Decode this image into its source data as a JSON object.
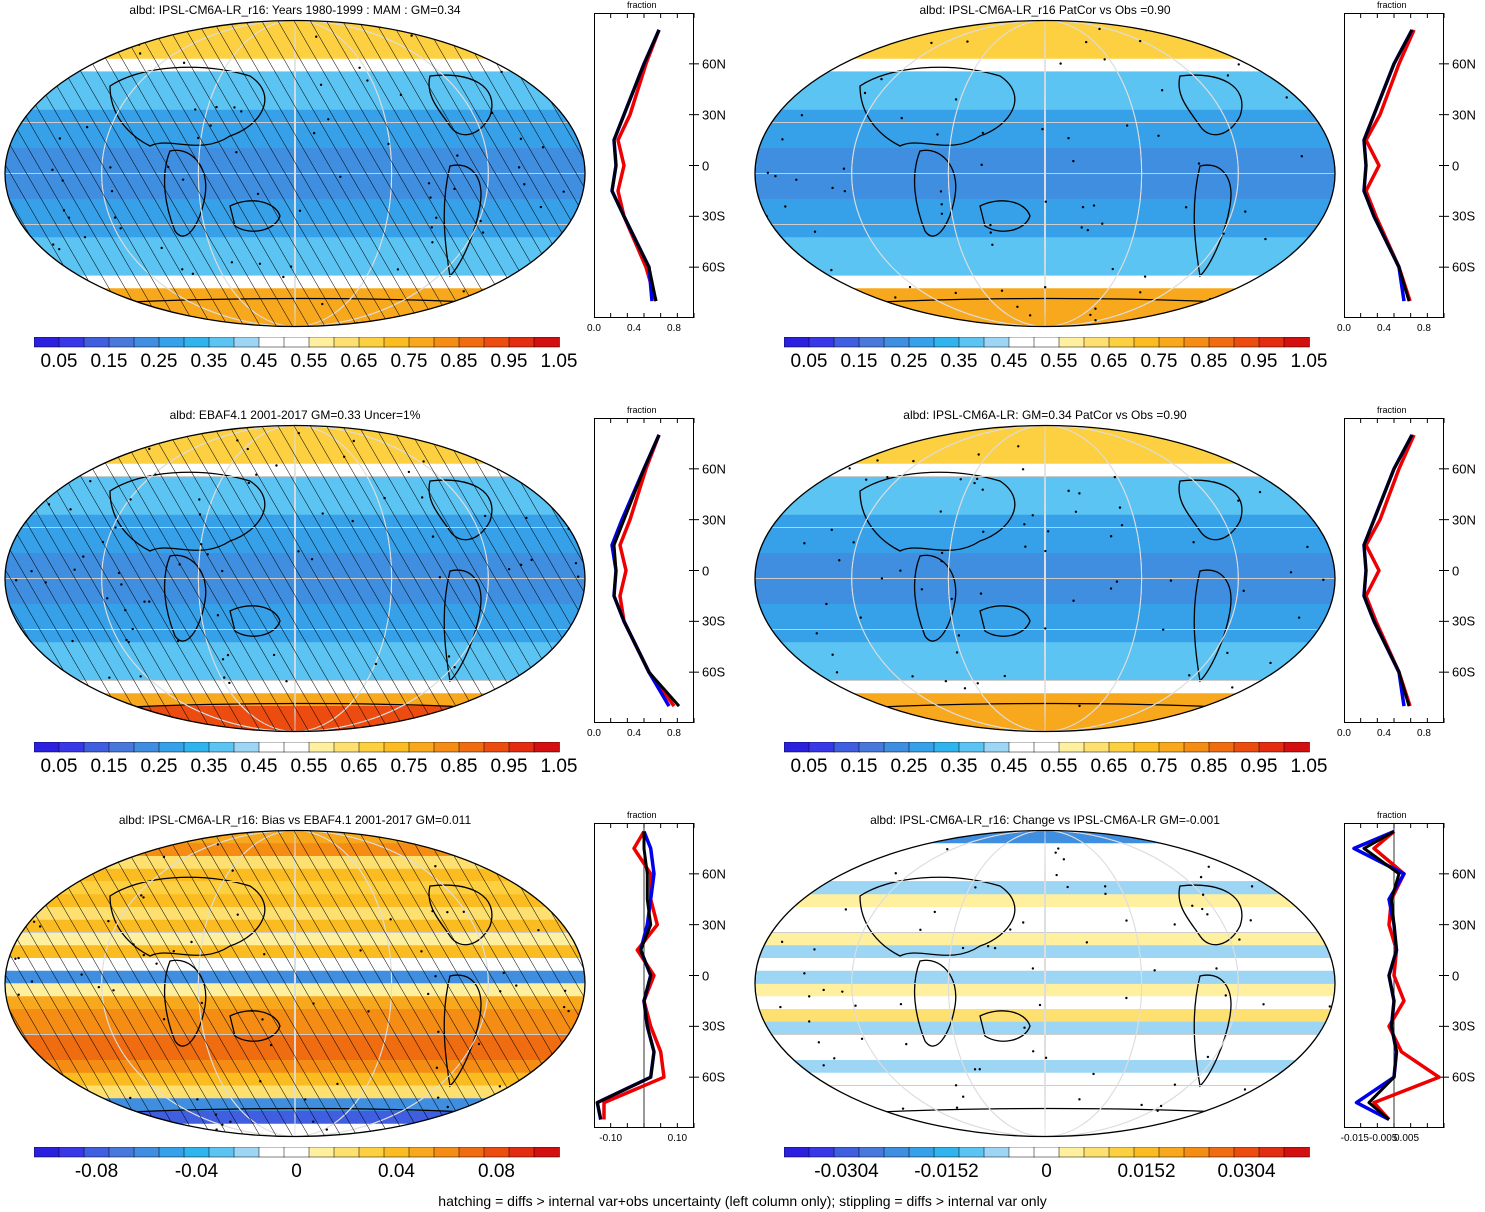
{
  "colorbars": {
    "albedo": {
      "colors": [
        "#2b1fe0",
        "#3838e8",
        "#3f5ee0",
        "#4878dc",
        "#3f8ee0",
        "#36a0e8",
        "#30b4ee",
        "#5cc4f2",
        "#9cd6f4",
        "#ffffff",
        "#ffffff",
        "#fff0a0",
        "#fde070",
        "#fcd040",
        "#fabc20",
        "#f8a81c",
        "#f58c14",
        "#f06c10",
        "#ec4c10",
        "#e42c10",
        "#d40f0f"
      ],
      "labels": [
        "0.05",
        "0.15",
        "0.25",
        "0.35",
        "0.45",
        "0.55",
        "0.65",
        "0.75",
        "0.85",
        "0.95",
        "1.05"
      ]
    },
    "bias": {
      "colors": [
        "#2b1fe0",
        "#3838e8",
        "#3f5ee0",
        "#4878dc",
        "#3f8ee0",
        "#36a0e8",
        "#30b4ee",
        "#5cc4f2",
        "#9cd6f4",
        "#ffffff",
        "#ffffff",
        "#fff0a0",
        "#fde070",
        "#fcd040",
        "#fabc20",
        "#f8a81c",
        "#f58c14",
        "#f06c10",
        "#ec4c10",
        "#e42c10",
        "#d40f0f"
      ],
      "labels": [
        "-0.08",
        "-0.04",
        "0",
        "0.04",
        "0.08"
      ]
    },
    "change": {
      "colors": [
        "#2b1fe0",
        "#3838e8",
        "#3f5ee0",
        "#4878dc",
        "#3f8ee0",
        "#36a0e8",
        "#30b4ee",
        "#5cc4f2",
        "#9cd6f4",
        "#ffffff",
        "#ffffff",
        "#fff0a0",
        "#fde070",
        "#fcd040",
        "#fabc20",
        "#f8a81c",
        "#f58c14",
        "#f06c10",
        "#ec4c10",
        "#e42c10",
        "#d40f0f"
      ],
      "labels": [
        "-0.0304",
        "-0.0152",
        "0",
        "0.0152",
        "0.0304"
      ]
    }
  },
  "lat_labels": [
    "60N",
    "30N",
    "0",
    "30S",
    "60S"
  ],
  "zonal_top_label": "fraction",
  "panels": [
    {
      "id": "p1",
      "title": "albd: IPSL-CM6A-LR_r16: Years 1980-1999 : MAM : GM=0.34",
      "bar": "albedo",
      "xticks": [
        "0.0",
        "0.4",
        "0.8"
      ],
      "hatched": true,
      "stippled": true
    },
    {
      "id": "p2",
      "title": "albd: IPSL-CM6A-LR_r16 PatCor vs Obs =0.90",
      "bar": "albedo",
      "xticks": [
        "0.0",
        "0.4",
        "0.8"
      ],
      "hatched": false,
      "stippled": true
    },
    {
      "id": "p3",
      "title": "albd: EBAF4.1 2001-2017 GM=0.33 Uncer=1%",
      "bar": "albedo",
      "xticks": [
        "0.0",
        "0.4",
        "0.8"
      ],
      "hatched": true,
      "stippled": true
    },
    {
      "id": "p4",
      "title": "albd: IPSL-CM6A-LR: GM=0.34 PatCor vs Obs =0.90",
      "bar": "albedo",
      "xticks": [
        "0.0",
        "0.4",
        "0.8"
      ],
      "hatched": false,
      "stippled": true
    },
    {
      "id": "p5",
      "title": "albd: IPSL-CM6A-LR_r16: Bias vs EBAF4.1 2001-2017 GM=0.011",
      "bar": "bias",
      "xticks": [
        "-0.10",
        "0.10"
      ],
      "hatched": true,
      "stippled": true
    },
    {
      "id": "p6",
      "title": "albd: IPSL-CM6A-LR_r16: Change vs IPSL-CM6A-LR GM=-0.001",
      "bar": "change",
      "xticks": [
        "-0.015-0.005",
        "0.005"
      ],
      "hatched": false,
      "stippled": true
    }
  ],
  "footer": "hatching = diffs > internal var+obs uncertainty (left column only); stippling = diffs > internal var only",
  "chart_data": [
    {
      "type": "line",
      "title": "albd: IPSL-CM6A-LR_r16: Years 1980-1999 : MAM : GM=0.34",
      "xlabel": "fraction",
      "xlim": [
        0,
        1
      ],
      "ylim": [
        -90,
        90
      ],
      "y": [
        -80,
        -60,
        -30,
        -15,
        0,
        15,
        30,
        60,
        80
      ],
      "series": [
        {
          "color": "#000000",
          "values": [
            0.62,
            0.55,
            0.3,
            0.18,
            0.22,
            0.2,
            0.3,
            0.5,
            0.65
          ]
        },
        {
          "color": "#ee0000",
          "values": [
            0.62,
            0.52,
            0.3,
            0.24,
            0.3,
            0.24,
            0.36,
            0.52,
            0.65
          ]
        },
        {
          "color": "#0000ee",
          "values": [
            0.58,
            0.55,
            0.3,
            0.18,
            0.22,
            0.2,
            0.3,
            0.5,
            0.65
          ]
        }
      ]
    },
    {
      "type": "line",
      "title": "albd: IPSL-CM6A-LR_r16 PatCor vs Obs =0.90",
      "xlabel": "fraction",
      "xlim": [
        0,
        1
      ],
      "ylim": [
        -90,
        90
      ],
      "y": [
        -80,
        -60,
        -30,
        -15,
        0,
        15,
        30,
        60,
        80
      ],
      "series": [
        {
          "color": "#000000",
          "values": [
            0.65,
            0.55,
            0.3,
            0.2,
            0.22,
            0.2,
            0.3,
            0.5,
            0.68
          ]
        },
        {
          "color": "#ee0000",
          "values": [
            0.66,
            0.55,
            0.32,
            0.22,
            0.35,
            0.22,
            0.36,
            0.55,
            0.7
          ]
        },
        {
          "color": "#0000ee",
          "values": [
            0.6,
            0.55,
            0.3,
            0.2,
            0.22,
            0.2,
            0.3,
            0.5,
            0.68
          ]
        }
      ]
    },
    {
      "type": "line",
      "title": "albd: EBAF4.1 2001-2017 GM=0.33 Uncer=1%",
      "xlabel": "fraction",
      "xlim": [
        0,
        1
      ],
      "ylim": [
        -90,
        90
      ],
      "y": [
        -80,
        -70,
        -60,
        -30,
        -15,
        0,
        15,
        30,
        60,
        80
      ],
      "series": [
        {
          "color": "#000000",
          "values": [
            0.85,
            0.7,
            0.55,
            0.3,
            0.2,
            0.22,
            0.2,
            0.3,
            0.5,
            0.65
          ]
        },
        {
          "color": "#ee0000",
          "values": [
            0.8,
            0.68,
            0.55,
            0.3,
            0.26,
            0.32,
            0.26,
            0.36,
            0.52,
            0.65
          ]
        },
        {
          "color": "#0000ee",
          "values": [
            0.75,
            0.65,
            0.55,
            0.3,
            0.2,
            0.22,
            0.18,
            0.28,
            0.5,
            0.65
          ]
        }
      ]
    },
    {
      "type": "line",
      "title": "albd: IPSL-CM6A-LR: GM=0.34 PatCor vs Obs =0.90",
      "xlabel": "fraction",
      "xlim": [
        0,
        1
      ],
      "ylim": [
        -90,
        90
      ],
      "y": [
        -80,
        -60,
        -30,
        -15,
        0,
        15,
        30,
        60,
        80
      ],
      "series": [
        {
          "color": "#000000",
          "values": [
            0.65,
            0.55,
            0.3,
            0.2,
            0.22,
            0.2,
            0.3,
            0.5,
            0.68
          ]
        },
        {
          "color": "#ee0000",
          "values": [
            0.66,
            0.55,
            0.32,
            0.22,
            0.35,
            0.22,
            0.36,
            0.55,
            0.7
          ]
        },
        {
          "color": "#0000ee",
          "values": [
            0.6,
            0.55,
            0.3,
            0.2,
            0.22,
            0.2,
            0.3,
            0.5,
            0.68
          ]
        }
      ]
    },
    {
      "type": "line",
      "title": "albd: IPSL-CM6A-LR_r16: Bias vs EBAF4.1 2001-2017 GM=0.011",
      "xlabel": "fraction",
      "xlim": [
        -0.15,
        0.15
      ],
      "ylim": [
        -90,
        90
      ],
      "y": [
        -85,
        -75,
        -60,
        -45,
        -30,
        -15,
        0,
        15,
        30,
        45,
        60,
        75,
        85
      ],
      "series": [
        {
          "color": "#000000",
          "values": [
            -0.13,
            -0.14,
            0.02,
            0.03,
            0.01,
            0.0,
            0.02,
            -0.01,
            0.02,
            0.01,
            0.01,
            0.0,
            0.0
          ]
        },
        {
          "color": "#ee0000",
          "values": [
            -0.12,
            -0.12,
            0.06,
            0.05,
            0.02,
            0.0,
            0.03,
            -0.02,
            0.04,
            0.02,
            0.02,
            -0.03,
            0.0
          ]
        },
        {
          "color": "#0000ee",
          "values": [
            -0.13,
            -0.14,
            0.02,
            0.03,
            0.01,
            0.0,
            0.02,
            -0.01,
            0.01,
            0.02,
            0.03,
            0.02,
            0.0
          ]
        }
      ]
    },
    {
      "type": "line",
      "title": "albd: IPSL-CM6A-LR_r16: Change vs IPSL-CM6A-LR GM=-0.001",
      "xlabel": "fraction",
      "xlim": [
        -0.02,
        0.02
      ],
      "ylim": [
        -90,
        90
      ],
      "y": [
        -85,
        -75,
        -60,
        -45,
        -30,
        -15,
        0,
        15,
        30,
        45,
        60,
        75,
        85
      ],
      "series": [
        {
          "color": "#000000",
          "values": [
            -0.002,
            -0.01,
            0.0,
            0.001,
            -0.001,
            0.0,
            -0.002,
            0.001,
            0.0,
            -0.001,
            0.002,
            -0.012,
            0.0
          ]
        },
        {
          "color": "#ee0000",
          "values": [
            -0.002,
            -0.008,
            0.018,
            0.003,
            -0.002,
            0.004,
            0.0,
            0.001,
            -0.002,
            -0.001,
            0.004,
            -0.008,
            0.0
          ]
        },
        {
          "color": "#0000ee",
          "values": [
            -0.002,
            -0.015,
            0.0,
            0.001,
            -0.001,
            0.0,
            -0.002,
            0.001,
            0.0,
            -0.002,
            0.004,
            -0.016,
            0.0
          ]
        }
      ]
    }
  ]
}
